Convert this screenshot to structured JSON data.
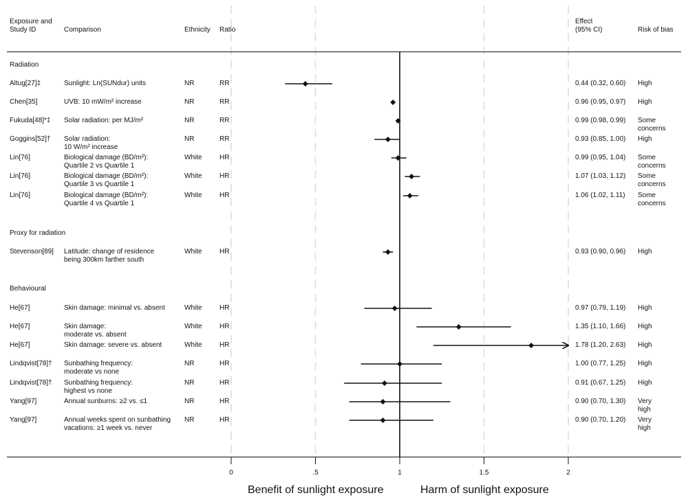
{
  "headers": {
    "exposure_line1": "Exposure and",
    "exposure_line2": "Study ID",
    "comparison": "Comparison",
    "ethnicity": "Ethnicity",
    "ratio": "Ratio",
    "effect_line1": "Effect",
    "effect_line2": "(95% CI)",
    "risk": "Risk of bias"
  },
  "sections": [
    "Radiation",
    "Proxy for radiation",
    "Behavioural"
  ],
  "rows": [
    {
      "study": "Altug[27]‡",
      "comparison": [
        "Sunlight: Ln(SUNdur) units"
      ],
      "ethnicity": "NR",
      "ratio": "RR",
      "effect": "0.44 (0.32, 0.60)",
      "risk": [
        "High"
      ]
    },
    {
      "study": "Chen[35]",
      "comparison": [
        "UVB: 10 mW/m² increase"
      ],
      "ethnicity": "NR",
      "ratio": "RR",
      "effect": "0.96 (0.95, 0.97)",
      "risk": [
        "High"
      ]
    },
    {
      "study": "Fukuda[48]*‡",
      "comparison": [
        "Solar radiation: per MJ/m²"
      ],
      "ethnicity": "NR",
      "ratio": "RR",
      "effect": "0.99 (0.98, 0.99)",
      "risk": [
        "Some",
        "concerns"
      ]
    },
    {
      "study": "Goggins[52]†",
      "comparison": [
        "Solar radiation:",
        "10 W/m² increase"
      ],
      "ethnicity": "NR",
      "ratio": "RR",
      "effect": "0.93 (0.85, 1.00)",
      "risk": [
        "High"
      ]
    },
    {
      "study": "Lin[76]",
      "comparison": [
        "Biological damage (BD/m²):",
        "Quartile 2 vs Quartile 1"
      ],
      "ethnicity": "White",
      "ratio": "HR",
      "effect": "0.99 (0.95, 1.04)",
      "risk": [
        "Some",
        "concerns"
      ]
    },
    {
      "study": "Lin[76]",
      "comparison": [
        "Biological damage (BD/m²):",
        "Quartile 3 vs Quartile 1"
      ],
      "ethnicity": "White",
      "ratio": "HR",
      "effect": "1.07 (1.03, 1.12)",
      "risk": [
        "Some",
        "concerns"
      ]
    },
    {
      "study": "Lin[76]",
      "comparison": [
        "Biological damage (BD/m²):",
        "Quartile 4 vs Quartile 1"
      ],
      "ethnicity": "White",
      "ratio": "HR",
      "effect": "1.06 (1.02, 1.11)",
      "risk": [
        "Some",
        "concerns"
      ]
    },
    {
      "study": "Stevenson[89]",
      "comparison": [
        "Latitude: change of residence",
        "being 300km farther south"
      ],
      "ethnicity": "White",
      "ratio": "HR",
      "effect": "0.93 (0.90, 0.96)",
      "risk": [
        "High"
      ]
    },
    {
      "study": "He[67]",
      "comparison": [
        "Skin damage: minimal vs. absent"
      ],
      "ethnicity": "White",
      "ratio": "HR",
      "effect": "0.97 (0.79, 1.19)",
      "risk": [
        "High"
      ]
    },
    {
      "study": "He[67]",
      "comparison": [
        "Skin damage:",
        "moderate vs. absent"
      ],
      "ethnicity": "White",
      "ratio": "HR",
      "effect": "1.35 (1.10, 1.66)",
      "risk": [
        "High"
      ]
    },
    {
      "study": "He[67]",
      "comparison": [
        "Skin damage: severe vs. absent"
      ],
      "ethnicity": "White",
      "ratio": "HR",
      "effect": "1.78 (1.20, 2.63)",
      "risk": [
        "High"
      ]
    },
    {
      "study": "Lindqvist[78]†",
      "comparison": [
        "Sunbathing frequency:",
        "moderate vs none"
      ],
      "ethnicity": "NR",
      "ratio": "HR",
      "effect": "1.00 (0.77, 1.25)",
      "risk": [
        "High"
      ]
    },
    {
      "study": "Lindqvist[78]†",
      "comparison": [
        "Sunbathing frequency:",
        "highest vs none"
      ],
      "ethnicity": "NR",
      "ratio": "HR",
      "effect": "0.91 (0.67, 1.25)",
      "risk": [
        "High"
      ]
    },
    {
      "study": "Yang[97]",
      "comparison": [
        "Annual sunburns: ≥2 vs. ≤1"
      ],
      "ethnicity": "NR",
      "ratio": "HR",
      "effect": "0.90 (0.70, 1.30)",
      "risk": [
        "Very",
        "high"
      ]
    },
    {
      "study": "Yang[97]",
      "comparison": [
        "Annual weeks spent on sunbathing",
        "vacations: ≥1 week vs. never"
      ],
      "ethnicity": "NR",
      "ratio": "HR",
      "effect": "0.90 (0.70, 1.20)",
      "risk": [
        "Very",
        "high"
      ]
    }
  ],
  "chart_data": {
    "type": "forest",
    "xlim": [
      0,
      2
    ],
    "xticks": [
      "0",
      ".5",
      "1",
      "1.5",
      "2"
    ],
    "xtick_values": [
      0,
      0.5,
      1,
      1.5,
      2
    ],
    "reference_line": 1,
    "grid": "dashed vertical at ticks",
    "xlabel_left": "Benefit of sunlight exposure",
    "xlabel_right": "Harm of sunlight exposure",
    "points": [
      {
        "estimate": 0.44,
        "lower": 0.32,
        "upper": 0.6
      },
      {
        "estimate": 0.96,
        "lower": 0.95,
        "upper": 0.97
      },
      {
        "estimate": 0.99,
        "lower": 0.98,
        "upper": 0.99
      },
      {
        "estimate": 0.93,
        "lower": 0.85,
        "upper": 1.0
      },
      {
        "estimate": 0.99,
        "lower": 0.95,
        "upper": 1.04
      },
      {
        "estimate": 1.07,
        "lower": 1.03,
        "upper": 1.12
      },
      {
        "estimate": 1.06,
        "lower": 1.02,
        "upper": 1.11
      },
      {
        "estimate": 0.93,
        "lower": 0.9,
        "upper": 0.96
      },
      {
        "estimate": 0.97,
        "lower": 0.79,
        "upper": 1.19
      },
      {
        "estimate": 1.35,
        "lower": 1.1,
        "upper": 1.66
      },
      {
        "estimate": 1.78,
        "lower": 1.2,
        "upper": 2.63,
        "truncated_upper": true
      },
      {
        "estimate": 1.0,
        "lower": 0.77,
        "upper": 1.25
      },
      {
        "estimate": 0.91,
        "lower": 0.67,
        "upper": 1.25
      },
      {
        "estimate": 0.9,
        "lower": 0.7,
        "upper": 1.3
      },
      {
        "estimate": 0.9,
        "lower": 0.7,
        "upper": 1.2
      }
    ]
  }
}
